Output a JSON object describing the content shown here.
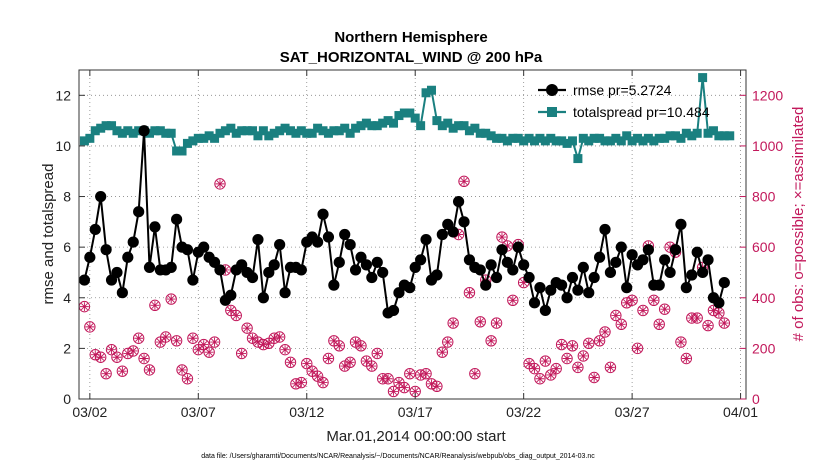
{
  "chart_data": {
    "type": "line",
    "title": "Northern Hemisphere",
    "subtitle": "SAT_HORIZONTAL_WIND @ 200 hPa",
    "xlabel": "Mar.01,2014 00:00:00 start",
    "ylabel": "rmse and totalspread",
    "y2label": "# of obs: o=possible; ×=assimilated",
    "footnote": "data file: /Users/gharamti/Documents/NCAR/Reanalysis/~/Documents/NCAR/Reanalysis/webpub/obs_diag_output_2014-03.nc",
    "xlim": [
      1.5,
      32.25
    ],
    "ylim": [
      0,
      13
    ],
    "y2lim": [
      0,
      1300
    ],
    "xticks": [
      2,
      7,
      12,
      17,
      22,
      27,
      32
    ],
    "xtick_labels": [
      "03/02",
      "03/07",
      "03/12",
      "03/17",
      "03/22",
      "03/27",
      "04/01"
    ],
    "yticks": [
      0,
      2,
      4,
      6,
      8,
      10,
      12
    ],
    "y2ticks": [
      0,
      200,
      400,
      600,
      800,
      1000,
      1200
    ],
    "series": [
      {
        "name": "rmse pr=5.2724",
        "axis": "left",
        "color": "#000000",
        "marker": "circle",
        "values": [
          4.7,
          5.6,
          6.7,
          8.0,
          5.9,
          4.7,
          5.0,
          4.2,
          5.6,
          6.2,
          7.4,
          10.6,
          5.2,
          6.8,
          5.1,
          5.1,
          5.2,
          7.1,
          6.0,
          5.9,
          4.7,
          5.8,
          6.0,
          5.6,
          5.4,
          5.1,
          3.9,
          4.1,
          5.1,
          5.3,
          5.0,
          4.8,
          6.3,
          4.0,
          5.0,
          5.3,
          6.1,
          4.2,
          5.2,
          5.2,
          5.1,
          6.2,
          6.4,
          6.2,
          7.3,
          6.4,
          4.5,
          5.4,
          6.5,
          6.1,
          5.1,
          5.6,
          5.3,
          4.8,
          5.4,
          5.0,
          3.4,
          3.5,
          4.2,
          4.5,
          4.4,
          5.2,
          5.5,
          6.3,
          4.7,
          4.9,
          6.5,
          6.9,
          6.6,
          7.8,
          7.0,
          5.5,
          5.2,
          5.1,
          4.5,
          5.3,
          4.8,
          5.9,
          5.4,
          5.1,
          6.0,
          5.3,
          4.8,
          3.8,
          4.4,
          3.5,
          4.3,
          4.6,
          4.5,
          4.0,
          4.8,
          4.3,
          5.2,
          4.2,
          4.8,
          5.6,
          6.7,
          5.0,
          5.4,
          6.0,
          4.4,
          5.7,
          5.3,
          5.5,
          5.9,
          4.5,
          4.5,
          5.5,
          5.0,
          5.9,
          6.9,
          4.4,
          4.9,
          5.8,
          5.0,
          5.5,
          4.0,
          3.8,
          4.6
        ]
      },
      {
        "name": "totalspread pr=10.484",
        "axis": "left",
        "color": "#1a8080",
        "marker": "square",
        "values": [
          10.2,
          10.3,
          10.6,
          10.7,
          10.8,
          10.8,
          10.6,
          10.5,
          10.6,
          10.5,
          10.6,
          10.6,
          10.5,
          10.6,
          10.6,
          10.5,
          10.5,
          9.8,
          9.8,
          10.1,
          10.2,
          10.3,
          10.3,
          10.4,
          10.3,
          10.5,
          10.6,
          10.7,
          10.5,
          10.6,
          10.6,
          10.6,
          10.4,
          10.6,
          10.4,
          10.5,
          10.6,
          10.7,
          10.6,
          10.5,
          10.6,
          10.5,
          10.5,
          10.7,
          10.6,
          10.5,
          10.6,
          10.6,
          10.7,
          10.5,
          10.7,
          10.8,
          10.9,
          10.8,
          10.8,
          10.9,
          11.0,
          10.9,
          11.2,
          11.3,
          11.3,
          11.1,
          10.8,
          12.1,
          12.2,
          11.0,
          10.8,
          10.9,
          10.7,
          10.8,
          10.8,
          10.6,
          10.7,
          10.5,
          10.5,
          10.4,
          10.3,
          10.3,
          10.2,
          10.3,
          10.3,
          10.2,
          10.3,
          10.2,
          10.3,
          10.2,
          10.3,
          10.2,
          10.2,
          10.1,
          10.2,
          9.5,
          10.3,
          10.2,
          10.3,
          10.3,
          10.2,
          10.2,
          10.3,
          10.2,
          10.4,
          10.2,
          10.3,
          10.2,
          10.3,
          10.2,
          10.3,
          10.3,
          10.4,
          10.4,
          10.3,
          10.5,
          10.4,
          10.5,
          12.7,
          10.5,
          10.6,
          10.4,
          10.4,
          10.4
        ]
      },
      {
        "name": "obs possible",
        "axis": "right",
        "color": "#c2185b",
        "marker": "open-circle",
        "values": [
          365,
          285,
          175,
          165,
          100,
          195,
          165,
          110,
          180,
          190,
          240,
          160,
          115,
          370,
          225,
          245,
          395,
          230,
          115,
          80,
          240,
          195,
          215,
          185,
          225,
          850,
          510,
          350,
          330,
          180,
          280,
          240,
          225,
          215,
          220,
          240,
          245,
          195,
          145,
          60,
          65,
          140,
          110,
          90,
          65,
          160,
          230,
          210,
          130,
          145,
          225,
          210,
          150,
          130,
          180,
          80,
          80,
          30,
          65,
          45,
          100,
          30,
          95,
          100,
          60,
          50,
          185,
          225,
          300,
          650,
          860,
          420,
          100,
          305,
          470,
          230,
          300,
          640,
          605,
          390,
          610,
          460,
          140,
          120,
          80,
          150,
          95,
          120,
          215,
          160,
          210,
          125,
          170,
          220,
          85,
          230,
          265,
          125,
          330,
          295,
          380,
          390,
          200,
          350,
          605,
          390,
          295,
          355,
          600,
          580,
          225,
          160,
          320,
          320,
          520,
          290,
          350,
          340,
          300
        ]
      },
      {
        "name": "obs assimilated",
        "axis": "right",
        "color": "#c2185b",
        "marker": "cross",
        "values": [
          365,
          285,
          175,
          165,
          100,
          195,
          165,
          110,
          180,
          190,
          240,
          160,
          115,
          370,
          225,
          245,
          395,
          230,
          115,
          80,
          240,
          195,
          215,
          185,
          225,
          850,
          510,
          350,
          330,
          180,
          280,
          240,
          225,
          215,
          220,
          240,
          245,
          195,
          145,
          60,
          65,
          140,
          110,
          90,
          65,
          160,
          230,
          210,
          130,
          145,
          225,
          210,
          150,
          130,
          180,
          80,
          80,
          30,
          65,
          45,
          100,
          30,
          95,
          100,
          60,
          50,
          185,
          225,
          300,
          650,
          860,
          420,
          100,
          305,
          470,
          230,
          300,
          640,
          605,
          390,
          610,
          460,
          140,
          120,
          80,
          150,
          95,
          120,
          215,
          160,
          210,
          125,
          170,
          220,
          85,
          230,
          265,
          125,
          330,
          295,
          380,
          390,
          200,
          350,
          605,
          390,
          295,
          355,
          600,
          580,
          225,
          160,
          320,
          320,
          520,
          290,
          350,
          340,
          300
        ]
      }
    ],
    "legend_position": "top-right"
  }
}
